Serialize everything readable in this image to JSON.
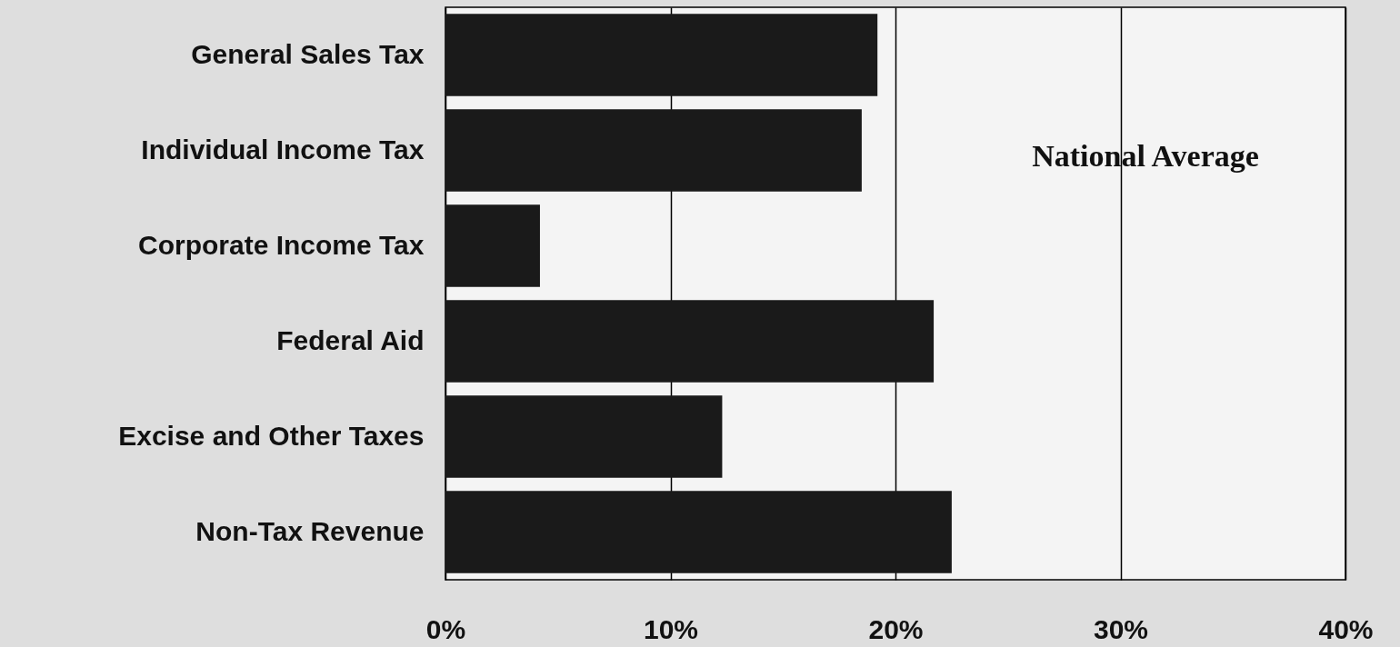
{
  "chart_data": {
    "type": "bar",
    "orientation": "horizontal",
    "categories": [
      "General Sales Tax",
      "Individual Income Tax",
      "Corporate Income Tax",
      "Federal Aid",
      "Excise and Other Taxes",
      "Non-Tax Revenue"
    ],
    "values": [
      19.2,
      18.5,
      4.2,
      21.7,
      12.3,
      22.5
    ],
    "color": "#1a1a1a",
    "xlim": [
      0,
      40
    ],
    "xticks": [
      {
        "value": 0,
        "label": "0%"
      },
      {
        "value": 10,
        "label": "10%"
      },
      {
        "value": 20,
        "label": "20%"
      },
      {
        "value": 30,
        "label": "30%"
      },
      {
        "value": 40,
        "label": "40%"
      }
    ],
    "grid": "x",
    "annotations": [
      "National Average"
    ]
  }
}
